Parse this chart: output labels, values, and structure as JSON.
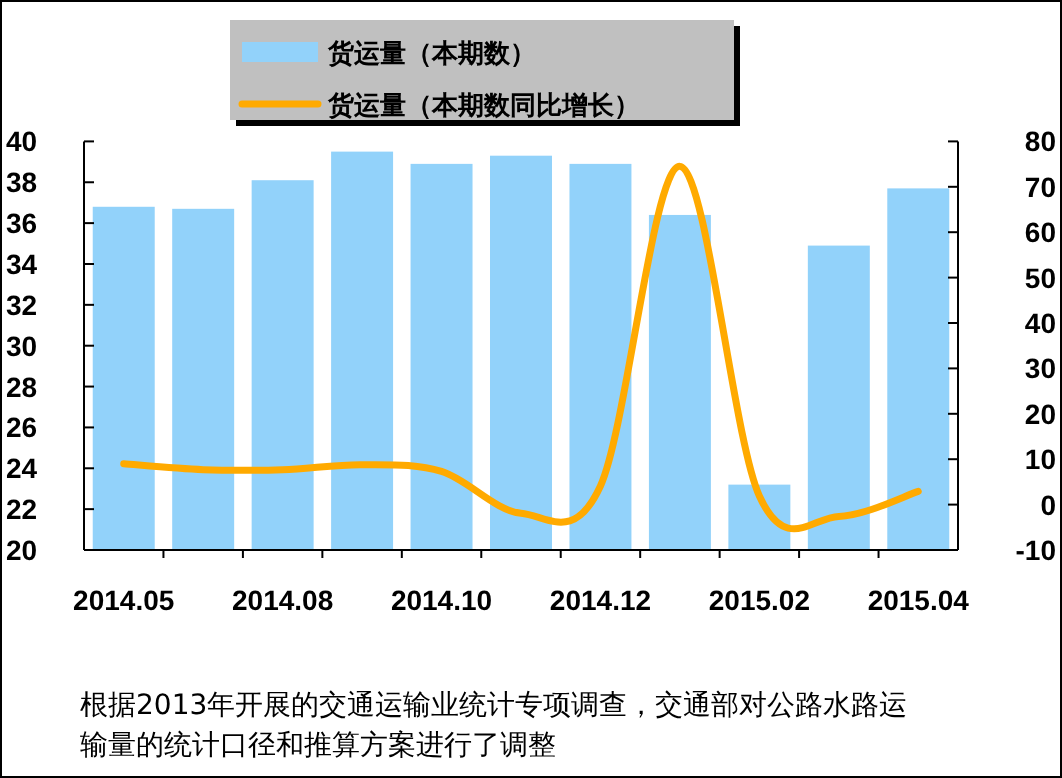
{
  "chart_data": {
    "type": "bar",
    "categories": [
      "2014.05",
      null,
      "2014.08",
      null,
      "2014.10",
      null,
      "2014.12",
      null,
      "2015.02",
      null,
      "2015.04"
    ],
    "series": [
      {
        "name": "货运量（本期数）",
        "color": "#92d2fa",
        "values": [
          36.8,
          36.7,
          38.1,
          39.5,
          38.9,
          39.3,
          38.9,
          36.4,
          23.2,
          34.9,
          37.7
        ]
      },
      {
        "name": "货运量（本期数同比增长）",
        "type": "line",
        "axis": "y2",
        "color": "#ffaa00",
        "values": [
          9,
          7.7,
          7.7,
          8.8,
          7.3,
          -1.9,
          4.1,
          74.5,
          1.9,
          -2.6,
          2.9
        ]
      }
    ],
    "ylim": [
      20,
      40
    ],
    "yticks": [
      20,
      22,
      24,
      26,
      28,
      30,
      32,
      34,
      36,
      38,
      40
    ],
    "y2lim": [
      -10,
      80
    ],
    "y2ticks": [
      -10,
      0,
      10,
      20,
      30,
      40,
      50,
      60,
      70,
      80
    ],
    "legend": "top",
    "marker": "none",
    "line_style": "solid",
    "annotations": [
      "根据2013年开展的交通运输业统计专项调查，交通部对公路水路运输量的统计口径和推算方案进行了调整"
    ]
  }
}
